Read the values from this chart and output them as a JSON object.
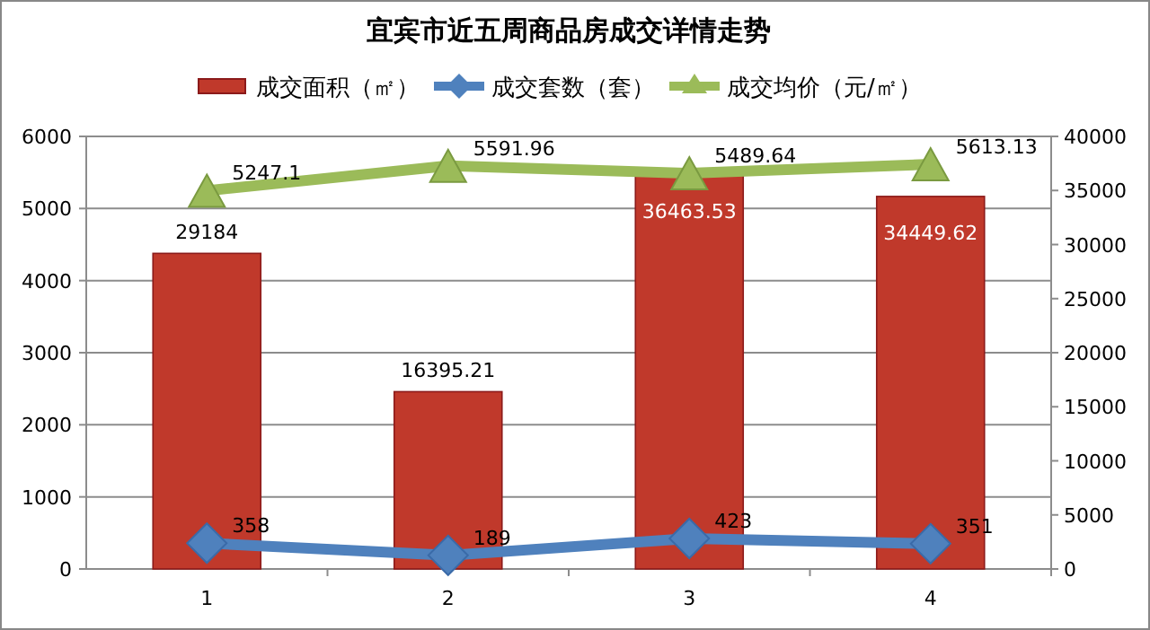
{
  "chart_data": {
    "type": "bar",
    "title": "宜宾市近五周商品房成交详情走势",
    "categories": [
      "1",
      "2",
      "3",
      "4"
    ],
    "series": [
      {
        "name": "成交面积（㎡）",
        "axis": "y2",
        "color": "#c0392b",
        "values": [
          29184,
          16395.21,
          36463.53,
          34449.62
        ]
      },
      {
        "name": "成交套数（套）",
        "type": "line",
        "marker": "diamond",
        "color": "#4f81bd",
        "values": [
          358,
          189,
          423,
          351
        ]
      },
      {
        "name": "成交均价（元/㎡）",
        "type": "line",
        "marker": "triangle",
        "color": "#9bbb59",
        "values": [
          5247.1,
          5591.96,
          5489.64,
          5613.13
        ]
      }
    ],
    "ylim": [
      0,
      6000
    ],
    "yticks": [
      0,
      1000,
      2000,
      3000,
      4000,
      5000,
      6000
    ],
    "y2lim": [
      0,
      40000
    ],
    "y2ticks": [
      0,
      5000,
      10000,
      15000,
      20000,
      25000,
      30000,
      35000,
      40000
    ],
    "grid": "y",
    "legend": "top",
    "data_labels": true
  }
}
